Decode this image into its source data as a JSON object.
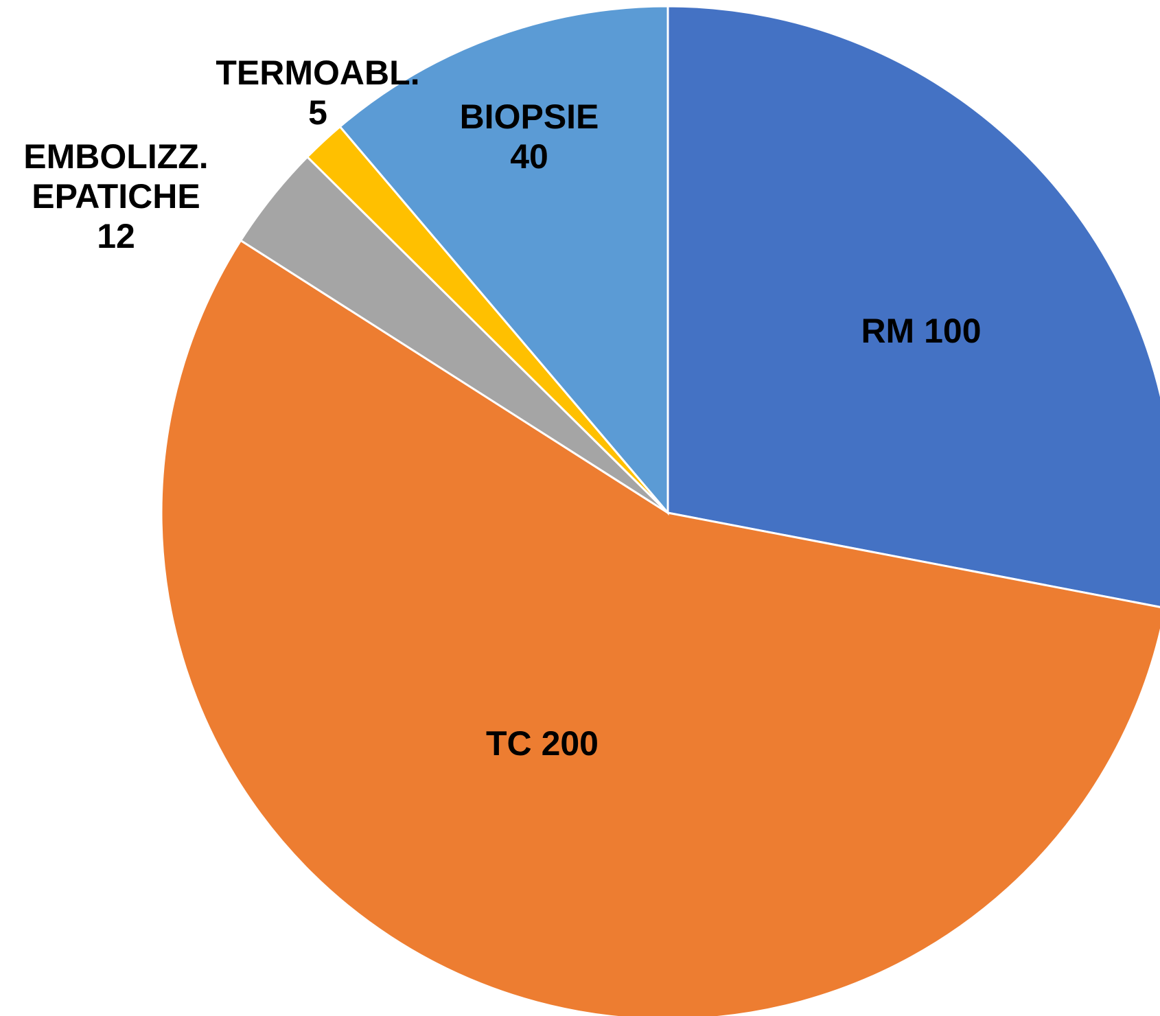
{
  "chart_data": {
    "type": "pie",
    "categories": [
      "RM",
      "TC",
      "EMBOLIZZ. EPATICHE",
      "TERMOABL.",
      "BIOPSIE"
    ],
    "values": [
      100,
      200,
      12,
      5,
      40
    ],
    "colors": [
      "#4472c4",
      "#ed7d31",
      "#a5a5a5",
      "#ffc000",
      "#5b9bd5"
    ]
  }
}
